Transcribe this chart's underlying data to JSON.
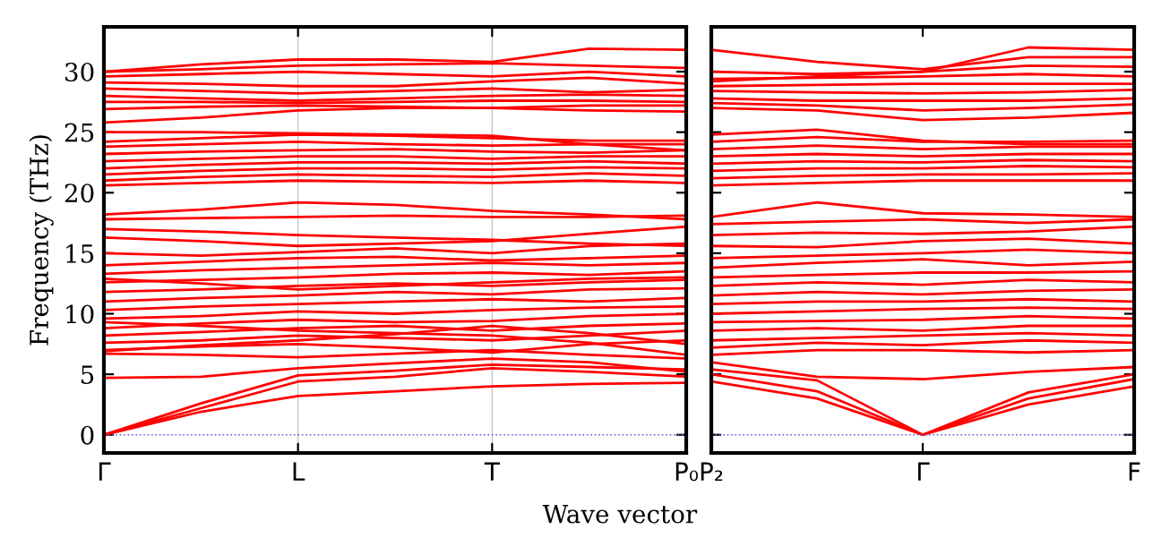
{
  "chart_data": [
    {
      "type": "line",
      "ylabel": "Frequency (THz)",
      "xlabel": "Wave vector",
      "categories": [
        "Γ",
        null,
        "L",
        null,
        "T",
        null,
        "P₀"
      ],
      "ylim": [
        -1.5,
        33.7
      ],
      "yticks": [
        0,
        5,
        10,
        15,
        20,
        25,
        30
      ],
      "grid": "x",
      "line_style": "solid",
      "marker": "none",
      "ref_lines": [
        {
          "axis": "y",
          "value": 0,
          "color": "#6060d0",
          "line_style": "dotted"
        }
      ],
      "series": [
        {
          "color": "#ff0000",
          "values": [
            0,
            1.9,
            3.2,
            3.6,
            4.0,
            4.2,
            4.3
          ]
        },
        {
          "color": "#ff0000",
          "values": [
            0,
            2.2,
            4.4,
            4.8,
            5.5,
            5.2,
            4.8
          ]
        },
        {
          "color": "#ff0000",
          "values": [
            0,
            2.6,
            4.9,
            5.3,
            5.8,
            5.6,
            5.4
          ]
        },
        {
          "color": "#ff0000",
          "values": [
            4.7,
            4.8,
            5.5,
            5.9,
            6.3,
            6.0,
            5.2
          ]
        },
        {
          "color": "#ff0000",
          "values": [
            6.7,
            6.6,
            6.4,
            6.7,
            7.0,
            6.6,
            6.3
          ]
        },
        {
          "color": "#ff0000",
          "values": [
            7.0,
            7.3,
            7.5,
            7.2,
            6.8,
            7.5,
            7.8
          ]
        },
        {
          "color": "#ff0000",
          "values": [
            7.6,
            7.8,
            8.2,
            8.0,
            7.8,
            8.2,
            8.6
          ]
        },
        {
          "color": "#ff0000",
          "values": [
            8.2,
            8.5,
            8.8,
            9.0,
            8.6,
            9.0,
            9.2
          ]
        },
        {
          "color": "#ff0000",
          "values": [
            8.8,
            9.2,
            9.5,
            9.3,
            9.4,
            9.8,
            10.0
          ]
        },
        {
          "color": "#ff0000",
          "values": [
            9.6,
            9.8,
            10.2,
            10.0,
            10.3,
            10.5,
            10.6
          ]
        },
        {
          "color": "#ff0000",
          "values": [
            10.3,
            10.6,
            10.8,
            11.0,
            11.2,
            11.0,
            11.3
          ]
        },
        {
          "color": "#ff0000",
          "values": [
            11.0,
            11.3,
            11.5,
            11.8,
            11.6,
            12.0,
            12.1
          ]
        },
        {
          "color": "#ff0000",
          "values": [
            11.8,
            12.0,
            12.3,
            12.5,
            12.3,
            12.6,
            12.8
          ]
        },
        {
          "color": "#ff0000",
          "values": [
            12.6,
            12.8,
            13.0,
            13.3,
            13.4,
            13.2,
            13.5
          ]
        },
        {
          "color": "#ff0000",
          "values": [
            13.3,
            13.6,
            13.8,
            14.0,
            14.2,
            14.0,
            14.2
          ]
        },
        {
          "color": "#ff0000",
          "values": [
            14.0,
            14.3,
            14.6,
            14.7,
            14.4,
            14.6,
            14.8
          ]
        },
        {
          "color": "#ff0000",
          "values": [
            15.0,
            14.8,
            15.1,
            15.4,
            15.0,
            15.6,
            15.8
          ]
        },
        {
          "color": "#ff0000",
          "values": [
            16.3,
            16.0,
            15.6,
            15.8,
            16.0,
            16.6,
            17.2
          ]
        },
        {
          "color": "#ff0000",
          "values": [
            17.0,
            16.8,
            16.5,
            16.3,
            16.1,
            15.8,
            15.6
          ]
        },
        {
          "color": "#ff0000",
          "values": [
            17.8,
            17.9,
            18.0,
            18.1,
            18.0,
            18.0,
            18.1
          ]
        },
        {
          "color": "#ff0000",
          "values": [
            18.2,
            18.6,
            19.2,
            19.0,
            18.5,
            18.2,
            17.8
          ]
        },
        {
          "color": "#ff0000",
          "values": [
            12.9,
            12.5,
            12.0,
            12.3,
            12.6,
            12.9,
            13.0
          ]
        },
        {
          "color": "#ff0000",
          "values": [
            6.9,
            7.4,
            7.8,
            8.3,
            9.0,
            8.4,
            7.5
          ]
        },
        {
          "color": "#ff0000",
          "values": [
            9.3,
            9.0,
            8.6,
            8.4,
            8.2,
            7.6,
            6.6
          ]
        },
        {
          "color": "#ff0000",
          "values": [
            20.6,
            20.8,
            21.0,
            20.9,
            20.8,
            21.0,
            20.8
          ]
        },
        {
          "color": "#ff0000",
          "values": [
            21.0,
            21.3,
            21.5,
            21.4,
            21.3,
            21.6,
            21.4
          ]
        },
        {
          "color": "#ff0000",
          "values": [
            21.5,
            21.8,
            22.0,
            22.0,
            21.9,
            22.1,
            22.0
          ]
        },
        {
          "color": "#ff0000",
          "values": [
            22.0,
            22.3,
            22.5,
            22.5,
            22.4,
            22.6,
            22.4
          ]
        },
        {
          "color": "#ff0000",
          "values": [
            22.6,
            22.8,
            23.0,
            23.0,
            22.8,
            23.0,
            23.0
          ]
        },
        {
          "color": "#ff0000",
          "values": [
            23.2,
            23.4,
            23.5,
            23.6,
            23.4,
            23.3,
            23.5
          ]
        },
        {
          "color": "#ff0000",
          "values": [
            23.8,
            24.0,
            24.2,
            24.0,
            23.9,
            24.0,
            24.0
          ]
        },
        {
          "color": "#ff0000",
          "values": [
            24.2,
            24.5,
            24.8,
            24.7,
            24.5,
            24.3,
            24.3
          ]
        },
        {
          "color": "#ff0000",
          "values": [
            25.0,
            25.0,
            24.9,
            24.8,
            24.7,
            24.0,
            23.5
          ]
        },
        {
          "color": "#ff0000",
          "values": [
            25.8,
            26.2,
            26.8,
            27.0,
            27.0,
            26.8,
            26.7
          ]
        },
        {
          "color": "#ff0000",
          "values": [
            26.9,
            27.1,
            27.2,
            27.1,
            27.0,
            27.2,
            27.2
          ]
        },
        {
          "color": "#ff0000",
          "values": [
            27.5,
            27.5,
            27.4,
            27.5,
            27.6,
            27.6,
            27.5
          ]
        },
        {
          "color": "#ff0000",
          "values": [
            28.0,
            27.8,
            27.6,
            27.8,
            28.0,
            28.1,
            28.0
          ]
        },
        {
          "color": "#ff0000",
          "values": [
            28.6,
            28.4,
            28.2,
            28.4,
            28.6,
            28.3,
            28.5
          ]
        },
        {
          "color": "#ff0000",
          "values": [
            29.1,
            29.0,
            28.8,
            28.8,
            29.2,
            29.5,
            29.0
          ]
        },
        {
          "color": "#ff0000",
          "values": [
            29.6,
            29.8,
            30.0,
            29.8,
            29.6,
            30.0,
            29.6
          ]
        },
        {
          "color": "#ff0000",
          "values": [
            30.0,
            30.2,
            30.5,
            30.6,
            30.7,
            30.5,
            30.3
          ]
        },
        {
          "color": "#ff0000",
          "values": [
            30.0,
            30.6,
            31.0,
            31.0,
            30.8,
            31.9,
            31.8
          ]
        }
      ]
    },
    {
      "type": "line",
      "categories": [
        "P₂",
        null,
        "Γ",
        null,
        "F"
      ],
      "ylim": [
        -1.5,
        33.7
      ],
      "yticks": [
        0,
        5,
        10,
        15,
        20,
        25,
        30
      ],
      "tick_labels": "x",
      "line_style": "solid",
      "marker": "none",
      "ref_lines": [
        {
          "axis": "y",
          "value": 0,
          "color": "#6060d0",
          "line_style": "dotted"
        }
      ],
      "series": [
        {
          "color": "#ff0000",
          "values": [
            4.4,
            3.0,
            0,
            2.5,
            4.0
          ]
        },
        {
          "color": "#ff0000",
          "values": [
            5.0,
            3.6,
            0,
            3.0,
            4.6
          ]
        },
        {
          "color": "#ff0000",
          "values": [
            5.4,
            4.5,
            0,
            3.5,
            5.0
          ]
        },
        {
          "color": "#ff0000",
          "values": [
            6.0,
            4.8,
            4.6,
            5.2,
            5.6
          ]
        },
        {
          "color": "#ff0000",
          "values": [
            6.6,
            7.0,
            7.0,
            6.8,
            7.0
          ]
        },
        {
          "color": "#ff0000",
          "values": [
            7.2,
            7.6,
            7.4,
            7.8,
            7.6
          ]
        },
        {
          "color": "#ff0000",
          "values": [
            7.8,
            8.0,
            8.2,
            8.4,
            8.2
          ]
        },
        {
          "color": "#ff0000",
          "values": [
            8.6,
            8.8,
            8.6,
            9.0,
            9.0
          ]
        },
        {
          "color": "#ff0000",
          "values": [
            9.3,
            9.4,
            9.5,
            9.8,
            9.6
          ]
        },
        {
          "color": "#ff0000",
          "values": [
            10.0,
            10.2,
            10.4,
            10.5,
            10.4
          ]
        },
        {
          "color": "#ff0000",
          "values": [
            10.8,
            11.0,
            11.0,
            11.2,
            11.0
          ]
        },
        {
          "color": "#ff0000",
          "values": [
            11.5,
            11.8,
            11.6,
            11.9,
            12.0
          ]
        },
        {
          "color": "#ff0000",
          "values": [
            12.3,
            12.6,
            12.4,
            12.8,
            12.6
          ]
        },
        {
          "color": "#ff0000",
          "values": [
            13.0,
            13.2,
            13.4,
            13.4,
            13.5
          ]
        },
        {
          "color": "#ff0000",
          "values": [
            13.8,
            14.2,
            14.5,
            14.0,
            14.3
          ]
        },
        {
          "color": "#ff0000",
          "values": [
            14.6,
            14.8,
            15.0,
            15.3,
            15.0
          ]
        },
        {
          "color": "#ff0000",
          "values": [
            15.6,
            15.5,
            16.0,
            16.2,
            15.8
          ]
        },
        {
          "color": "#ff0000",
          "values": [
            16.5,
            16.7,
            16.6,
            16.8,
            17.2
          ]
        },
        {
          "color": "#ff0000",
          "values": [
            17.4,
            17.6,
            17.8,
            17.5,
            17.8
          ]
        },
        {
          "color": "#ff0000",
          "values": [
            18.0,
            19.2,
            18.3,
            18.2,
            18.0
          ]
        },
        {
          "color": "#ff0000",
          "values": [
            20.6,
            20.8,
            21.0,
            21.0,
            21.0
          ]
        },
        {
          "color": "#ff0000",
          "values": [
            21.2,
            21.4,
            21.5,
            21.5,
            21.6
          ]
        },
        {
          "color": "#ff0000",
          "values": [
            21.8,
            22.0,
            22.0,
            22.2,
            22.1
          ]
        },
        {
          "color": "#ff0000",
          "values": [
            22.4,
            22.6,
            22.5,
            22.7,
            22.6
          ]
        },
        {
          "color": "#ff0000",
          "values": [
            23.0,
            23.2,
            23.0,
            23.2,
            23.2
          ]
        },
        {
          "color": "#ff0000",
          "values": [
            23.6,
            23.9,
            23.6,
            23.8,
            23.8
          ]
        },
        {
          "color": "#ff0000",
          "values": [
            24.2,
            24.6,
            24.2,
            24.2,
            24.3
          ]
        },
        {
          "color": "#ff0000",
          "values": [
            24.8,
            25.2,
            24.3,
            24.0,
            24.0
          ]
        },
        {
          "color": "#ff0000",
          "values": [
            27.0,
            26.8,
            26.0,
            26.2,
            26.6
          ]
        },
        {
          "color": "#ff0000",
          "values": [
            27.4,
            27.2,
            26.8,
            27.0,
            27.3
          ]
        },
        {
          "color": "#ff0000",
          "values": [
            27.8,
            27.6,
            27.6,
            27.6,
            27.8
          ]
        },
        {
          "color": "#ff0000",
          "values": [
            28.4,
            28.3,
            28.2,
            28.3,
            28.5
          ]
        },
        {
          "color": "#ff0000",
          "values": [
            28.8,
            28.9,
            29.0,
            29.0,
            29.0
          ]
        },
        {
          "color": "#ff0000",
          "values": [
            29.4,
            29.5,
            29.6,
            29.8,
            29.6
          ]
        },
        {
          "color": "#ff0000",
          "values": [
            30.0,
            29.8,
            30.0,
            30.5,
            30.4
          ]
        },
        {
          "color": "#ff0000",
          "values": [
            31.8,
            30.8,
            30.2,
            31.2,
            31.2
          ]
        },
        {
          "color": "#ff0000",
          "values": [
            29.2,
            29.6,
            30.0,
            32.0,
            31.8
          ]
        }
      ]
    }
  ]
}
